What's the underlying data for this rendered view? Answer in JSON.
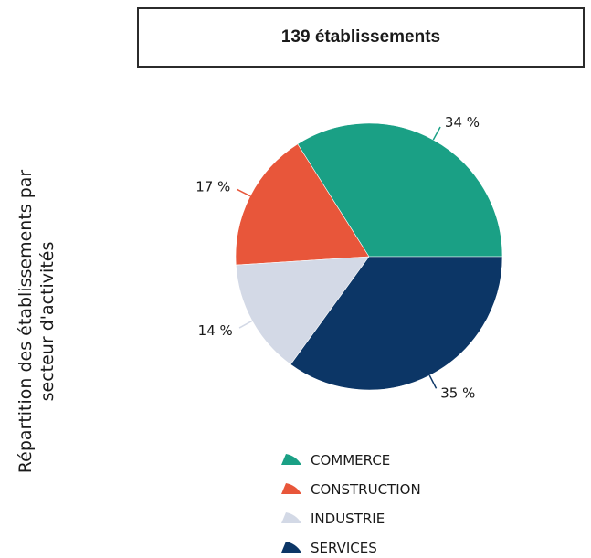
{
  "header": {
    "title": "139 établissements"
  },
  "side_label": {
    "line1": "Répartition des établissements par",
    "line2": "secteur d'activités"
  },
  "chart_data": {
    "type": "pie",
    "title": "",
    "categories": [
      "COMMERCE",
      "CONSTRUCTION",
      "INDUSTRIE",
      "SERVICES"
    ],
    "values": [
      34,
      17,
      14,
      35
    ],
    "labels": [
      "34 %",
      "17 %",
      "14 %",
      "35 %"
    ],
    "colors": [
      "#1aa085",
      "#e8563a",
      "#d3d9e6",
      "#0c3666"
    ],
    "legend": "bottom"
  }
}
